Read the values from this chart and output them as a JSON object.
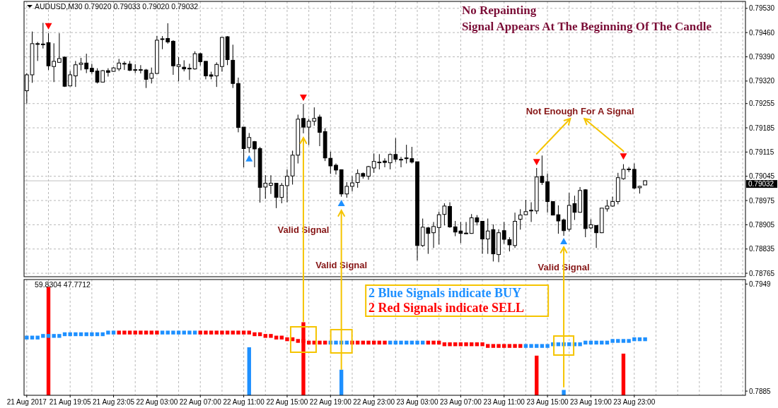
{
  "chart_data": [
    {
      "type": "candlestick",
      "title": "AUDUSD,M30 0.79020 0.79033 0.79020 0.79032",
      "categories": [
        null,
        null,
        null,
        null,
        null,
        null,
        null,
        null,
        null,
        null,
        null,
        null,
        null,
        null,
        null,
        null,
        null,
        null,
        null,
        null,
        null,
        null,
        null,
        null,
        null,
        null,
        null,
        null,
        null,
        null,
        null,
        null,
        null,
        null,
        null,
        null,
        null,
        null,
        null,
        null,
        null,
        null,
        null,
        null,
        null,
        null,
        null,
        null,
        null,
        null,
        null,
        null,
        null,
        null,
        null,
        null,
        null,
        null,
        null,
        null,
        null,
        null,
        null,
        null,
        null,
        null,
        null,
        null,
        null,
        null,
        null,
        null,
        null,
        null,
        null,
        null,
        null,
        null,
        null,
        null,
        null,
        null,
        null,
        null,
        null,
        null,
        null,
        null,
        null,
        null,
        null,
        null,
        null,
        null,
        null,
        null,
        null,
        null,
        null,
        null,
        null,
        null,
        null,
        null,
        null,
        null,
        null,
        null,
        null,
        null,
        null,
        null,
        null,
        null,
        null,
        null,
        null,
        null,
        null,
        null,
        null,
        null,
        null,
        null,
        null,
        null,
        null,
        null,
        null,
        null,
        null,
        null,
        null
      ],
      "ohlc": [
        [
          0.79292,
          0.79343,
          0.79255,
          0.79338
        ],
        [
          0.79338,
          0.79463,
          0.79315,
          0.79428
        ],
        [
          0.79428,
          0.79433,
          0.79378,
          0.79427
        ],
        [
          0.79427,
          0.79488,
          0.79414,
          0.79425
        ],
        [
          0.79431,
          0.79458,
          0.79352,
          0.79364
        ],
        [
          0.79362,
          0.79429,
          0.79317,
          0.79377
        ],
        [
          0.79374,
          0.79458,
          0.79374,
          0.79385
        ],
        [
          0.79389,
          0.79391,
          0.79303,
          0.79305
        ],
        [
          0.79306,
          0.79349,
          0.79305,
          0.79338
        ],
        [
          0.79335,
          0.79378,
          0.79303,
          0.79367
        ],
        [
          0.79368,
          0.79387,
          0.79351,
          0.79372
        ],
        [
          0.79372,
          0.79399,
          0.79343,
          0.79355
        ],
        [
          0.79357,
          0.7937,
          0.79341,
          0.79347
        ],
        [
          0.79349,
          0.79357,
          0.79313,
          0.79317
        ],
        [
          0.79317,
          0.79352,
          0.79317,
          0.7935
        ],
        [
          0.7935,
          0.79357,
          0.79333,
          0.79345
        ],
        [
          0.79348,
          0.7936,
          0.79347,
          0.79358
        ],
        [
          0.79355,
          0.79384,
          0.79349,
          0.79372
        ],
        [
          0.7937,
          0.79377,
          0.79352,
          0.79371
        ],
        [
          0.79369,
          0.79378,
          0.79349,
          0.79351
        ],
        [
          0.79353,
          0.79369,
          0.79343,
          0.79353
        ],
        [
          0.79353,
          0.79366,
          0.79342,
          0.79353
        ],
        [
          0.79352,
          0.79355,
          0.793,
          0.79325
        ],
        [
          0.79328,
          0.79359,
          0.79313,
          0.79342
        ],
        [
          0.79342,
          0.7945,
          0.79341,
          0.79438
        ],
        [
          0.79441,
          0.7945,
          0.79412,
          0.79442
        ],
        [
          0.79443,
          0.79487,
          0.79428,
          0.79433
        ],
        [
          0.79435,
          0.79438,
          0.79338,
          0.79364
        ],
        [
          0.79362,
          0.79389,
          0.79319,
          0.79367
        ],
        [
          0.7936,
          0.7938,
          0.79348,
          0.79355
        ],
        [
          0.79357,
          0.7937,
          0.79323,
          0.79357
        ],
        [
          0.79355,
          0.79406,
          0.79353,
          0.79399
        ],
        [
          0.79399,
          0.79402,
          0.79365,
          0.79376
        ],
        [
          0.79377,
          0.79377,
          0.79325,
          0.79335
        ],
        [
          0.79338,
          0.79347,
          0.79325,
          0.79334
        ],
        [
          0.79335,
          0.79374,
          0.79303,
          0.79368
        ],
        [
          0.79362,
          0.79447,
          0.79347,
          0.79446
        ],
        [
          0.79448,
          0.7945,
          0.79366,
          0.79382
        ],
        [
          0.7938,
          0.79425,
          0.793,
          0.79313
        ],
        [
          0.79313,
          0.7933,
          0.79172,
          0.79186
        ],
        [
          0.79187,
          0.79187,
          0.79071,
          0.79125
        ],
        [
          0.79128,
          0.7917,
          0.79113,
          0.79157
        ],
        [
          0.79145,
          0.79147,
          0.79071,
          0.79124
        ],
        [
          0.79125,
          0.7913,
          0.78969,
          0.79013
        ],
        [
          0.79014,
          0.79048,
          0.7898,
          0.79025
        ],
        [
          0.79019,
          0.79048,
          0.78994,
          0.79025
        ],
        [
          0.79025,
          0.79025,
          0.78953,
          0.78984
        ],
        [
          0.78984,
          0.79026,
          0.78967,
          0.79019
        ],
        [
          0.79018,
          0.79065,
          0.7897,
          0.79045
        ],
        [
          0.79046,
          0.79119,
          0.79021,
          0.79106
        ],
        [
          0.79106,
          0.79223,
          0.79082,
          0.7921
        ],
        [
          0.79212,
          0.79254,
          0.79169,
          0.79187
        ],
        [
          0.79187,
          0.79211,
          0.79135,
          0.79204
        ],
        [
          0.79204,
          0.79244,
          0.79191,
          0.79212
        ],
        [
          0.79216,
          0.79223,
          0.79132,
          0.79172
        ],
        [
          0.79174,
          0.79184,
          0.79089,
          0.79098
        ],
        [
          0.79097,
          0.79116,
          0.79052,
          0.79075
        ],
        [
          0.79077,
          0.79082,
          0.7905,
          0.79063
        ],
        [
          0.79064,
          0.79065,
          0.78986,
          0.78994
        ],
        [
          0.78994,
          0.79028,
          0.78983,
          0.79016
        ],
        [
          0.79016,
          0.79045,
          0.79001,
          0.79026
        ],
        [
          0.79027,
          0.79065,
          0.79012,
          0.79053
        ],
        [
          0.79053,
          0.79056,
          0.79038,
          0.79045
        ],
        [
          0.79045,
          0.79075,
          0.79035,
          0.79073
        ],
        [
          0.79069,
          0.79111,
          0.79055,
          0.79088
        ],
        [
          0.79085,
          0.79109,
          0.79065,
          0.79086
        ],
        [
          0.79089,
          0.79097,
          0.79071,
          0.79085
        ],
        [
          0.79084,
          0.79111,
          0.79065,
          0.79108
        ],
        [
          0.79108,
          0.79155,
          0.79086,
          0.79094
        ],
        [
          0.79094,
          0.79101,
          0.79071,
          0.79094
        ],
        [
          0.79098,
          0.79136,
          0.79082,
          0.79097
        ],
        [
          0.79096,
          0.7913,
          0.79082,
          0.79086
        ],
        [
          0.79087,
          0.79087,
          0.78802,
          0.78845
        ],
        [
          0.78845,
          0.78923,
          0.78841,
          0.78898
        ],
        [
          0.78896,
          0.78899,
          0.78821,
          0.7888
        ],
        [
          0.78882,
          0.78913,
          0.78838,
          0.789
        ],
        [
          0.78897,
          0.78943,
          0.78848,
          0.78934
        ],
        [
          0.78935,
          0.78967,
          0.78903,
          0.78959
        ],
        [
          0.78958,
          0.7897,
          0.78896,
          0.78899
        ],
        [
          0.78899,
          0.78916,
          0.78872,
          0.78884
        ],
        [
          0.78887,
          0.78913,
          0.78852,
          0.7888
        ],
        [
          0.78881,
          0.78913,
          0.78879,
          0.7888
        ],
        [
          0.7888,
          0.78936,
          0.78879,
          0.78925
        ],
        [
          0.78925,
          0.78933,
          0.78903,
          0.78913
        ],
        [
          0.78915,
          0.78915,
          0.78821,
          0.78864
        ],
        [
          0.78864,
          0.78923,
          0.78821,
          0.78887
        ],
        [
          0.78891,
          0.78906,
          0.78799,
          0.78821
        ],
        [
          0.78819,
          0.78892,
          0.78797,
          0.78882
        ],
        [
          0.78888,
          0.78913,
          0.7885,
          0.78863
        ],
        [
          0.78862,
          0.78869,
          0.78828,
          0.78847
        ],
        [
          0.78845,
          0.7894,
          0.78838,
          0.78915
        ],
        [
          0.78921,
          0.7895,
          0.78891,
          0.78933
        ],
        [
          0.78934,
          0.78977,
          0.78932,
          0.78943
        ],
        [
          0.78947,
          0.7897,
          0.78913,
          0.78946
        ],
        [
          0.78945,
          0.79069,
          0.78936,
          0.79043
        ],
        [
          0.79045,
          0.79105,
          0.7902,
          0.79027
        ],
        [
          0.79029,
          0.79053,
          0.7894,
          0.78972
        ],
        [
          0.78972,
          0.78972,
          0.78932,
          0.78933
        ],
        [
          0.78934,
          0.78961,
          0.78879,
          0.78916
        ],
        [
          0.78919,
          0.78923,
          0.78873,
          0.78888
        ],
        [
          0.78892,
          0.78997,
          0.78886,
          0.78961
        ],
        [
          0.78966,
          0.78989,
          0.78919,
          0.78941
        ],
        [
          0.78941,
          0.79014,
          0.7894,
          0.79004
        ],
        [
          0.79006,
          0.79008,
          0.78869,
          0.78894
        ],
        [
          0.78896,
          0.78921,
          0.78892,
          0.78905
        ],
        [
          0.78903,
          0.78903,
          0.78838,
          0.78882
        ],
        [
          0.78882,
          0.78953,
          0.78881,
          0.78953
        ],
        [
          0.78951,
          0.78977,
          0.78943,
          0.78959
        ],
        [
          0.78959,
          0.78986,
          0.78957,
          0.78972
        ],
        [
          0.78972,
          0.79055,
          0.78964,
          0.79041
        ],
        [
          0.79038,
          0.7908,
          0.79035,
          0.79065
        ],
        [
          0.79066,
          0.79072,
          0.79057,
          0.79065
        ],
        [
          0.79065,
          0.79082,
          0.79008,
          0.79011
        ],
        [
          0.79012,
          0.79018,
          0.78995,
          0.79016
        ],
        [
          0.7902,
          0.79033,
          0.7902,
          0.79032
        ],
        null,
        null,
        null,
        null,
        null,
        null,
        null,
        null,
        null,
        null,
        null,
        null,
        null,
        null,
        null,
        null,
        null,
        null
      ],
      "series": [
        {
          "type": "scatter",
          "color": "#ff0000",
          "values": [
            null,
            null,
            null,
            null,
            0.79479,
            null,
            null,
            null,
            null,
            null,
            null,
            null,
            null,
            null,
            null,
            null,
            null,
            null,
            null,
            null,
            null,
            null,
            null,
            null,
            null,
            null,
            null,
            null,
            null,
            null,
            null,
            null,
            null,
            null,
            null,
            null,
            null,
            null,
            null,
            null,
            null,
            null,
            null,
            null,
            null,
            null,
            null,
            null,
            null,
            null,
            null,
            0.79273,
            null,
            null,
            null,
            null,
            null,
            null,
            null,
            null,
            null,
            null,
            null,
            null,
            null,
            null,
            null,
            null,
            null,
            null,
            null,
            null,
            null,
            null,
            null,
            null,
            null,
            null,
            null,
            null,
            null,
            null,
            null,
            null,
            null,
            null,
            null,
            null,
            null,
            null,
            null,
            null,
            null,
            null,
            0.79087,
            null,
            null,
            null,
            null,
            null,
            null,
            null,
            null,
            null,
            null,
            null,
            null,
            null,
            null,
            null,
            0.79103,
            null,
            null,
            null,
            null,
            null,
            null,
            null,
            null,
            null,
            null,
            null,
            null,
            null,
            null,
            null,
            null,
            null,
            null,
            null,
            null,
            null,
            null
          ]
        },
        {
          "type": "scatter",
          "color": "#1e90ff",
          "values": [
            null,
            null,
            null,
            null,
            null,
            null,
            null,
            null,
            null,
            null,
            null,
            null,
            null,
            null,
            null,
            null,
            null,
            null,
            null,
            null,
            null,
            null,
            null,
            null,
            null,
            null,
            null,
            null,
            null,
            null,
            null,
            null,
            null,
            null,
            null,
            null,
            null,
            null,
            null,
            null,
            null,
            0.79096,
            null,
            null,
            null,
            null,
            null,
            null,
            null,
            null,
            null,
            null,
            null,
            null,
            null,
            null,
            null,
            null,
            0.78967,
            null,
            null,
            null,
            null,
            null,
            null,
            null,
            null,
            null,
            null,
            null,
            null,
            null,
            null,
            null,
            null,
            null,
            null,
            null,
            null,
            null,
            null,
            null,
            null,
            null,
            null,
            null,
            null,
            null,
            null,
            null,
            null,
            null,
            null,
            null,
            null,
            null,
            null,
            null,
            null,
            0.78857,
            null,
            null,
            null,
            null,
            null,
            null,
            null,
            null,
            null,
            null,
            null,
            null,
            null,
            null,
            null,
            null,
            null,
            null,
            null,
            null,
            null,
            null,
            null,
            null,
            null,
            null,
            null,
            null,
            null,
            null,
            null,
            null,
            null
          ]
        }
      ],
      "marker": "triangle",
      "ylim": [
        0.78755,
        0.7955
      ],
      "yticks": [
        {
          "value": 0.7953,
          "label": "0.79530"
        },
        {
          "value": 0.7946,
          "label": "0.79460"
        },
        {
          "value": 0.7939,
          "label": "0.79390"
        },
        {
          "value": 0.7932,
          "label": "0.79320"
        },
        0.79255,
        0.79185,
        0.79115,
        0.79045,
        0.78975,
        0.78905,
        0.78835,
        0.78765
      ],
      "grid": true,
      "tick_labels": "y",
      "ref_lines": [
        {
          "axis": "y",
          "value": 0.79032,
          "label": "0.79032",
          "color": "#c0c0c0"
        }
      ],
      "annotations": [
        "No Repainting",
        "Signal Appears At The Beginning Of The Candle",
        "Valid Signal",
        "Valid Signal",
        "Valid Signal",
        "Not Enough For A Signal"
      ]
    },
    {
      "type": "bar",
      "title": "59.8304 47.7712",
      "categories": [
        "21 Aug 2017",
        null,
        null,
        null,
        null,
        null,
        null,
        null,
        "21 Aug 19:05",
        null,
        null,
        null,
        null,
        null,
        null,
        null,
        "21 Aug 23:05",
        null,
        null,
        null,
        null,
        null,
        null,
        null,
        "22 Aug 03:00",
        null,
        null,
        null,
        null,
        null,
        null,
        null,
        "22 Aug 07:00",
        null,
        null,
        null,
        null,
        null,
        null,
        null,
        "22 Aug 11:00",
        null,
        null,
        null,
        null,
        null,
        null,
        null,
        "22 Aug 15:00",
        null,
        null,
        null,
        null,
        null,
        null,
        null,
        "22 Aug 19:00",
        null,
        null,
        null,
        null,
        null,
        null,
        null,
        "22 Aug 23:00",
        null,
        null,
        null,
        null,
        null,
        null,
        null,
        "23 Aug 03:00",
        null,
        null,
        null,
        null,
        null,
        null,
        null,
        "23 Aug 07:00",
        null,
        null,
        null,
        null,
        null,
        null,
        null,
        "23 Aug 11:00",
        null,
        null,
        null,
        null,
        null,
        null,
        null,
        "23 Aug 15:00",
        null,
        null,
        null,
        null,
        null,
        null,
        null,
        "23 Aug 19:00",
        null,
        null,
        null,
        null,
        null,
        null,
        null,
        "23 Aug 23:00",
        null,
        null,
        null,
        null,
        null,
        null,
        null,
        null,
        null,
        null,
        null,
        null,
        null,
        null,
        null,
        null,
        null,
        null,
        null,
        null
      ],
      "series": [
        {
          "type": "bar",
          "color": "#ff0000",
          "values": [
            null,
            null,
            null,
            null,
            0.79473,
            null,
            null,
            null,
            null,
            null,
            null,
            null,
            null,
            null,
            null,
            null,
            null,
            null,
            null,
            null,
            null,
            null,
            null,
            null,
            null,
            null,
            null,
            null,
            null,
            null,
            null,
            null,
            null,
            null,
            null,
            null,
            null,
            null,
            null,
            null,
            null,
            null,
            null,
            null,
            null,
            null,
            null,
            null,
            null,
            null,
            null,
            0.79262,
            null,
            null,
            null,
            null,
            null,
            null,
            null,
            null,
            null,
            null,
            null,
            null,
            null,
            null,
            null,
            null,
            null,
            null,
            null,
            null,
            null,
            null,
            null,
            null,
            null,
            null,
            null,
            null,
            null,
            null,
            null,
            null,
            null,
            null,
            null,
            null,
            null,
            null,
            null,
            null,
            null,
            null,
            0.79062,
            null,
            null,
            null,
            null,
            null,
            null,
            null,
            null,
            null,
            null,
            null,
            null,
            null,
            null,
            null,
            0.79074,
            null,
            null,
            null,
            null,
            null,
            null,
            null,
            null,
            null,
            null,
            null,
            null,
            null,
            null,
            null,
            null,
            null,
            null,
            null,
            null,
            null,
            null
          ]
        },
        {
          "type": "bar",
          "color": "#1e90ff",
          "values": [
            null,
            null,
            null,
            null,
            null,
            null,
            null,
            null,
            null,
            null,
            null,
            null,
            null,
            null,
            null,
            null,
            null,
            null,
            null,
            null,
            null,
            null,
            null,
            null,
            null,
            null,
            null,
            null,
            null,
            null,
            null,
            null,
            null,
            null,
            null,
            null,
            null,
            null,
            null,
            null,
            null,
            0.79112,
            null,
            null,
            null,
            null,
            null,
            null,
            null,
            null,
            null,
            null,
            null,
            null,
            null,
            null,
            null,
            null,
            0.78978,
            null,
            null,
            null,
            null,
            null,
            null,
            null,
            null,
            null,
            null,
            null,
            null,
            null,
            null,
            null,
            null,
            null,
            null,
            null,
            null,
            null,
            null,
            null,
            null,
            null,
            null,
            null,
            null,
            null,
            null,
            null,
            null,
            null,
            null,
            null,
            null,
            null,
            null,
            null,
            null,
            0.78857,
            null,
            null,
            null,
            null,
            null,
            null,
            null,
            null,
            null,
            null,
            null,
            null,
            null,
            null,
            null,
            null,
            null,
            null,
            null,
            null,
            null,
            null,
            null,
            null,
            null,
            null,
            null,
            null,
            null,
            null,
            null,
            null,
            null
          ]
        },
        {
          "type": "scatter",
          "color": "#1e90ff",
          "values": [
            0.7917,
            0.7917,
            0.7917,
            0.7918,
            0.7918,
            0.7918,
            0.7918,
            0.7919,
            0.7919,
            0.7919,
            0.7919,
            0.7919,
            0.7919,
            0.7919,
            0.7919,
            0.792,
            0.792,
            null,
            null,
            null,
            null,
            null,
            null,
            null,
            null,
            0.792,
            0.792,
            0.792,
            0.792,
            0.792,
            0.792,
            0.792,
            null,
            null,
            null,
            null,
            null,
            null,
            null,
            null,
            null,
            null,
            null,
            null,
            null,
            null,
            null,
            null,
            null,
            null,
            null,
            null,
            null,
            null,
            null,
            null,
            0.7914,
            0.7914,
            0.7914,
            0.7914,
            null,
            null,
            null,
            null,
            null,
            null,
            null,
            0.7914,
            0.7914,
            0.7914,
            0.7914,
            0.7914,
            0.7914,
            0.7914,
            null,
            null,
            null,
            null,
            null,
            null,
            null,
            null,
            null,
            null,
            null,
            null,
            null,
            null,
            null,
            null,
            null,
            null,
            0.7912,
            0.7912,
            0.7912,
            0.7912,
            0.7912,
            0.7913,
            0.7913,
            0.7913,
            0.7913,
            0.7913,
            0.7913,
            0.7914,
            0.7914,
            0.7914,
            0.7914,
            0.7914,
            0.7915,
            0.7915,
            0.7915,
            0.7915,
            0.7916,
            0.7916,
            0.7916,
            null,
            null,
            null,
            null,
            null,
            null,
            null,
            null,
            null,
            null,
            null,
            null,
            null,
            null,
            null,
            null,
            null,
            null
          ]
        },
        {
          "type": "scatter",
          "color": "#ff0000",
          "values": [
            null,
            null,
            null,
            null,
            null,
            null,
            null,
            null,
            null,
            null,
            null,
            null,
            null,
            null,
            null,
            null,
            null,
            0.792,
            0.792,
            0.792,
            0.792,
            0.792,
            0.792,
            0.792,
            0.792,
            null,
            null,
            null,
            null,
            null,
            null,
            null,
            0.792,
            0.792,
            0.792,
            0.792,
            0.792,
            0.792,
            0.792,
            0.792,
            0.792,
            0.792,
            0.7919,
            0.7919,
            0.7918,
            0.7918,
            0.7917,
            0.7917,
            0.7916,
            0.7916,
            0.7915,
            0.7915,
            0.7914,
            0.7914,
            0.7914,
            0.7914,
            null,
            null,
            null,
            null,
            0.7914,
            0.7914,
            0.7914,
            0.7914,
            0.7914,
            0.7914,
            0.7914,
            null,
            null,
            null,
            null,
            null,
            null,
            null,
            0.7914,
            0.7914,
            0.7914,
            0.7913,
            0.7913,
            0.7913,
            0.7913,
            0.7913,
            0.7913,
            0.7913,
            0.7913,
            0.7912,
            0.7912,
            0.7912,
            0.7912,
            0.7912,
            0.7912,
            0.7912,
            null,
            null,
            null,
            null,
            null,
            null,
            null,
            null,
            null,
            null,
            null,
            null,
            null,
            null,
            null,
            null,
            null,
            null,
            null,
            null,
            null,
            null,
            null,
            null,
            null,
            null,
            null,
            null,
            null,
            null,
            null,
            null,
            null,
            null,
            null,
            null,
            null,
            null,
            null,
            null,
            null
          ]
        }
      ],
      "marker": "square",
      "ylim": [
        0.78825,
        0.79517
      ],
      "yticks": [
        0.7949,
        0.7885
      ],
      "grid": "x",
      "annotations": [
        "2 Blue Signals indicate BUY",
        "2 Red Signals indicate SELL"
      ]
    }
  ]
}
